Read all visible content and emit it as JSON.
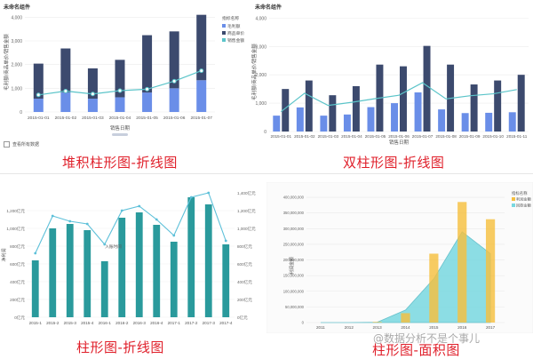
{
  "captions": {
    "p1": "堆积柱形图-折线图",
    "p2": "双柱形图-折线图",
    "p3": "柱形图-折线图",
    "p4": "柱形图-面积图"
  },
  "panel_titles": {
    "p1": "未命名组件",
    "p2": "未命名组件"
  },
  "p1_checkbox_label": "查看所有数据",
  "watermark": "@数据分析不是个事儿",
  "colors": {
    "navy": "#3c4a6e",
    "blue": "#6a8ee8",
    "teal_line": "#5bc4c9",
    "teal_bar": "#2a9a9c",
    "line_blue": "#5dc0d9",
    "yellow": "#f5c040",
    "area": "#79d8e0",
    "caption_red": "#e0202b"
  },
  "chart_data": [
    {
      "id": "p1",
      "type": "bar",
      "stacked": true,
      "categories": [
        "2015-01-01",
        "2015-01-02",
        "2015-01-03",
        "2015-01-04",
        "2015-01-05",
        "2015-01-06",
        "2015-01-07"
      ],
      "xlabel": "销售日期",
      "ylabel": "毛利额/商品单价/销售金额",
      "yticks": [
        0,
        1000,
        2000,
        3000,
        4000
      ],
      "yticklabels": [
        "0",
        "1,000",
        "2,000",
        "3,000",
        "4,000"
      ],
      "ylim": [
        0,
        4200
      ],
      "legend_title": "指标名称",
      "legend_position": "top-right",
      "series": [
        {
          "name": "毛利额",
          "kind": "bar",
          "color": "#6a8ee8",
          "values": [
            560,
            820,
            560,
            620,
            820,
            1000,
            1340
          ]
        },
        {
          "name": "商品单价",
          "kind": "bar",
          "color": "#3c4a6e",
          "values": [
            1480,
            1860,
            1280,
            1580,
            2420,
            2400,
            2760
          ]
        },
        {
          "name": "销售金额",
          "kind": "line",
          "color": "#5bc4c9",
          "values": [
            720,
            880,
            760,
            900,
            960,
            1300,
            1740
          ]
        }
      ]
    },
    {
      "id": "p2",
      "type": "bar",
      "grouped": true,
      "categories": [
        "2015-01-01",
        "2015-01-02",
        "2015-01-03",
        "2015-01-04",
        "2015-01-05",
        "2015-01-06",
        "2015-01-07",
        "2015-01-08",
        "2015-01-09",
        "2015-01-10",
        "2015-01-11"
      ],
      "xlabel": "销售日期",
      "ylabel": "毛利额/商品单价/销售金额",
      "yticks": [
        0,
        1000,
        2000,
        3000,
        4000
      ],
      "yticklabels": [
        "0",
        "1,000",
        "2,000",
        "3,000",
        "4,000"
      ],
      "ylim": [
        0,
        4200
      ],
      "series": [
        {
          "name": "",
          "kind": "bar",
          "color": "#6a8ee8",
          "values": [
            560,
            850,
            560,
            600,
            860,
            1000,
            1380,
            780,
            650,
            660,
            680
          ]
        },
        {
          "name": "",
          "kind": "bar",
          "color": "#3c4a6e",
          "values": [
            1500,
            1800,
            1280,
            1600,
            2360,
            2300,
            3020,
            2360,
            1660,
            1800,
            2000
          ]
        },
        {
          "name": "",
          "kind": "line",
          "color": "#5bc4c9",
          "values": [
            700,
            1350,
            920,
            1030,
            1160,
            1280,
            1720,
            1150,
            1260,
            1330,
            1480
          ]
        }
      ]
    },
    {
      "id": "p3",
      "type": "bar",
      "categories": [
        "2015-1",
        "2015-2",
        "2015-3",
        "2015-4",
        "2016-1",
        "2016-2",
        "2016-3",
        "2016-4",
        "2017-1",
        "2017-2",
        "2017-3",
        "2017-4"
      ],
      "xlabel": "入账时间",
      "ylabel": "净利润",
      "yticks": [
        0,
        200,
        400,
        600,
        800,
        1000,
        1200
      ],
      "yticklabels": [
        "0亿元",
        "200亿元",
        "400亿元",
        "600亿元",
        "800亿元",
        "1,000亿元",
        "1,200亿元"
      ],
      "ylim": [
        0,
        1400
      ],
      "y2ticklabels": [
        "0亿元",
        "200亿元",
        "400亿元",
        "600亿元",
        "800亿元",
        "1,000亿元",
        "1,200亿元",
        "1,400亿元"
      ],
      "series": [
        {
          "name": "",
          "kind": "bar",
          "color": "#2a9a9c",
          "values": [
            640,
            1000,
            1050,
            980,
            630,
            1120,
            1180,
            1040,
            850,
            1350,
            1270,
            820
          ]
        },
        {
          "name": "",
          "kind": "line",
          "color": "#5dc0d9",
          "values": [
            720,
            1140,
            1080,
            1050,
            820,
            1200,
            1250,
            1100,
            920,
            1350,
            1400,
            860
          ]
        }
      ]
    },
    {
      "id": "p4",
      "type": "area",
      "categories": [
        "2011",
        "2012",
        "2013",
        "2014",
        "2015",
        "2016",
        "2017"
      ],
      "ylabel": "利润金额",
      "yticks": [
        0,
        50000000,
        100000000,
        150000000,
        200000000,
        250000000,
        300000000,
        350000000,
        400000000
      ],
      "yticklabels": [
        "0",
        "50,000,000",
        "100,000,000",
        "150,000,000",
        "200,000,000",
        "250,000,000",
        "300,000,000",
        "350,000,000",
        "400,000,000"
      ],
      "ylim": [
        0,
        420000000
      ],
      "legend_title": "指标名称",
      "legend_position": "top-right",
      "series": [
        {
          "name": "利润金额",
          "kind": "bar",
          "color": "#f5c040",
          "values": [
            0,
            0,
            2000000,
            30000000,
            220000000,
            385000000,
            330000000
          ]
        },
        {
          "name": "回款金额",
          "kind": "area",
          "color": "#79d8e0",
          "values": [
            0,
            0,
            1000000,
            40000000,
            140000000,
            290000000,
            220000000
          ]
        }
      ]
    }
  ]
}
